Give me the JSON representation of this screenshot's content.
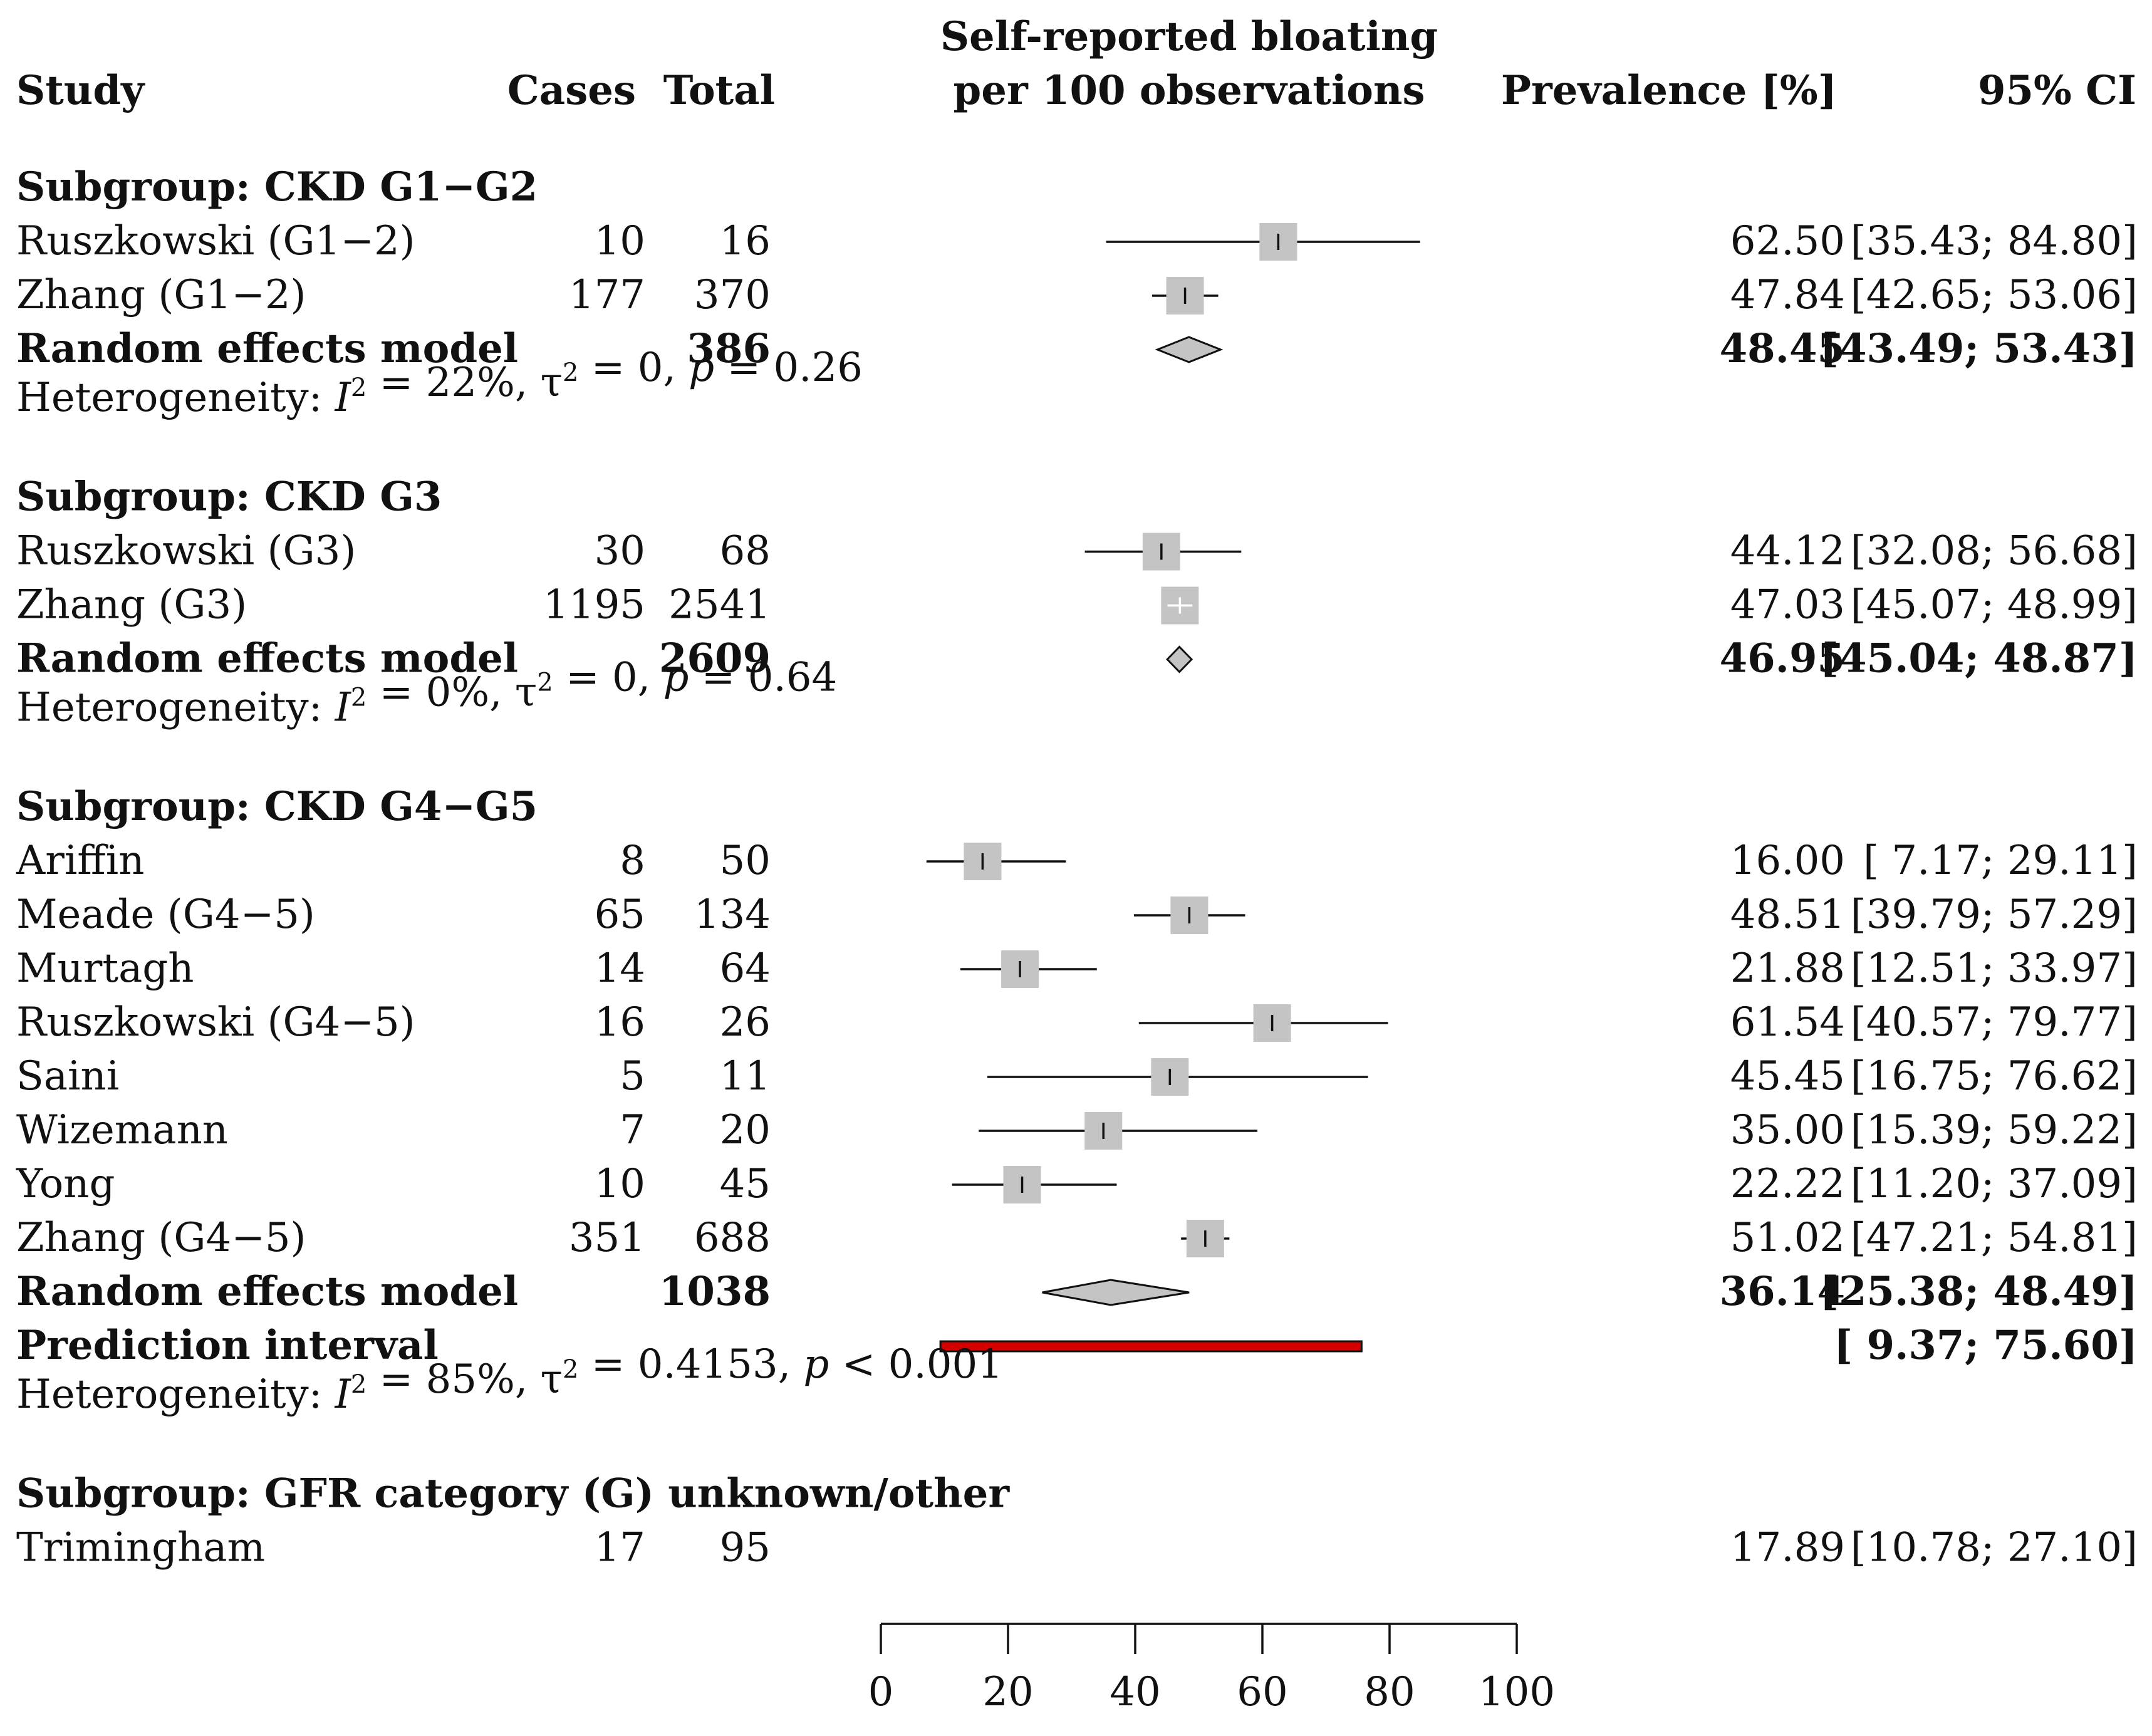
{
  "header": {
    "study": "Study",
    "cases": "Cases",
    "total": "Total",
    "plot_title_line1": "Self-reported bloating",
    "plot_title_line2": "per 100 observations",
    "prevalence": "Prevalence [%]",
    "ci": "95% CI"
  },
  "chart_data": {
    "type": "forest",
    "title": "Self-reported bloating per 100 observations",
    "xlim": [
      0,
      100
    ],
    "ticks": [
      "0",
      "20",
      "40",
      "60",
      "80",
      "100"
    ],
    "subgroups": [
      {
        "label": "Subgroup: CKD G1−G2",
        "studies": [
          {
            "name": "Ruszkowski (G1−2)",
            "cases": "10",
            "total": "16",
            "prev": "62.50",
            "ci": "[35.43; 84.80]",
            "est": 62.5,
            "lo": 35.43,
            "hi": 84.8,
            "w": 3
          },
          {
            "name": "Zhang (G1−2)",
            "cases": "177",
            "total": "370",
            "prev": "47.84",
            "ci": "[42.65; 53.06]",
            "est": 47.84,
            "lo": 42.65,
            "hi": 53.06,
            "w": 3
          }
        ],
        "model": {
          "label": "Random effects model",
          "total": "386",
          "prev": "48.45",
          "ci": "[43.49; 53.43]",
          "est": 48.45,
          "lo": 43.49,
          "hi": 53.43
        },
        "prediction": null,
        "het": {
          "pre": "Heterogeneity: ",
          "I": "I",
          "sup": "2",
          "i2val": " = 22%, τ",
          "tau": " = 0, ",
          "p": "p",
          "pval": " = 0.26"
        }
      },
      {
        "label": "Subgroup: CKD G3",
        "studies": [
          {
            "name": "Ruszkowski (G3)",
            "cases": "30",
            "total": "68",
            "prev": "44.12",
            "ci": "[32.08; 56.68]",
            "est": 44.12,
            "lo": 32.08,
            "hi": 56.68,
            "w": 3
          },
          {
            "name": "Zhang (G3)",
            "cases": "1195",
            "total": "2541",
            "prev": "47.03",
            "ci": "[45.07; 48.99]",
            "est": 47.03,
            "lo": 45.07,
            "hi": 48.99,
            "w": 3
          }
        ],
        "model": {
          "label": "Random effects model",
          "total": "2609",
          "prev": "46.95",
          "ci": "[45.04; 48.87]",
          "est": 46.95,
          "lo": 45.04,
          "hi": 48.87
        },
        "prediction": null,
        "het": {
          "pre": "Heterogeneity: ",
          "I": "I",
          "sup": "2",
          "i2val": " = 0%, τ",
          "tau": " = 0, ",
          "p": "p",
          "pval": " = 0.64"
        }
      },
      {
        "label": "Subgroup: CKD G4−G5",
        "studies": [
          {
            "name": "Ariffin",
            "cases": "8",
            "total": "50",
            "prev": "16.00",
            "ci": "[ 7.17; 29.11]",
            "est": 16.0,
            "lo": 7.17,
            "hi": 29.11,
            "w": 3
          },
          {
            "name": "Meade (G4−5)",
            "cases": "65",
            "total": "134",
            "prev": "48.51",
            "ci": "[39.79; 57.29]",
            "est": 48.51,
            "lo": 39.79,
            "hi": 57.29,
            "w": 3
          },
          {
            "name": "Murtagh",
            "cases": "14",
            "total": "64",
            "prev": "21.88",
            "ci": "[12.51; 33.97]",
            "est": 21.88,
            "lo": 12.51,
            "hi": 33.97,
            "w": 3
          },
          {
            "name": "Ruszkowski (G4−5)",
            "cases": "16",
            "total": "26",
            "prev": "61.54",
            "ci": "[40.57; 79.77]",
            "est": 61.54,
            "lo": 40.57,
            "hi": 79.77,
            "w": 3
          },
          {
            "name": "Saini",
            "cases": "5",
            "total": "11",
            "prev": "45.45",
            "ci": "[16.75; 76.62]",
            "est": 45.45,
            "lo": 16.75,
            "hi": 76.62,
            "w": 3
          },
          {
            "name": "Wizemann",
            "cases": "7",
            "total": "20",
            "prev": "35.00",
            "ci": "[15.39; 59.22]",
            "est": 35.0,
            "lo": 15.39,
            "hi": 59.22,
            "w": 3
          },
          {
            "name": "Yong",
            "cases": "10",
            "total": "45",
            "prev": "22.22",
            "ci": "[11.20; 37.09]",
            "est": 22.22,
            "lo": 11.2,
            "hi": 37.09,
            "w": 3
          },
          {
            "name": "Zhang (G4−5)",
            "cases": "351",
            "total": "688",
            "prev": "51.02",
            "ci": "[47.21; 54.81]",
            "est": 51.02,
            "lo": 47.21,
            "hi": 54.81,
            "w": 3
          }
        ],
        "model": {
          "label": "Random effects model",
          "total": "1038",
          "prev": "36.14",
          "ci": "[25.38; 48.49]",
          "est": 36.14,
          "lo": 25.38,
          "hi": 48.49
        },
        "prediction": {
          "label": "Prediction interval",
          "ci": "[ 9.37; 75.60]",
          "lo": 9.37,
          "hi": 75.6
        },
        "het": {
          "pre": "Heterogeneity: ",
          "I": "I",
          "sup": "2",
          "i2val": " = 85%, τ",
          "tau": " = 0.4153, ",
          "p": "p",
          "pval": " < 0.001"
        }
      },
      {
        "label": "Subgroup: GFR category (G) unknown/other",
        "studies": [
          {
            "name": "Trimingham",
            "cases": "17",
            "total": "95",
            "prev": "17.89",
            "ci": "[10.78; 27.10]",
            "est": 17.89,
            "lo": 10.78,
            "hi": 27.1,
            "w": 0
          }
        ],
        "model": null,
        "prediction": null,
        "het": null
      }
    ]
  },
  "colors": {
    "square": "#c4c4c4",
    "diamond_fill": "#c4c4c4",
    "prediction_fill": "#d40000",
    "line": "#111111"
  }
}
